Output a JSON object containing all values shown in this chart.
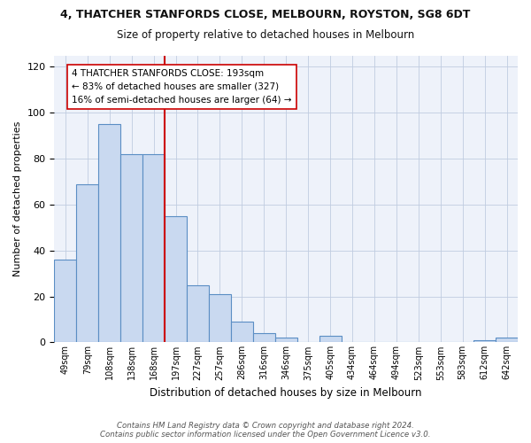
{
  "title": "4, THATCHER STANFORDS CLOSE, MELBOURN, ROYSTON, SG8 6DT",
  "subtitle": "Size of property relative to detached houses in Melbourn",
  "xlabel": "Distribution of detached houses by size in Melbourn",
  "ylabel": "Number of detached properties",
  "bar_values": [
    36,
    69,
    95,
    82,
    82,
    55,
    25,
    21,
    9,
    4,
    2,
    0,
    3,
    0,
    0,
    0,
    0,
    0,
    0,
    1,
    2
  ],
  "xlabels": [
    "49sqm",
    "79sqm",
    "108sqm",
    "138sqm",
    "168sqm",
    "197sqm",
    "227sqm",
    "257sqm",
    "286sqm",
    "316sqm",
    "346sqm",
    "375sqm",
    "405sqm",
    "434sqm",
    "464sqm",
    "494sqm",
    "523sqm",
    "553sqm",
    "583sqm",
    "612sqm",
    "642sqm"
  ],
  "bar_color": "#c9d9f0",
  "bar_edge_color": "#5b8ec4",
  "vline_x_index": 5,
  "vline_color": "#cc0000",
  "ylim": [
    0,
    125
  ],
  "yticks": [
    0,
    20,
    40,
    60,
    80,
    100,
    120
  ],
  "annotation_lines": [
    "4 THATCHER STANFORDS CLOSE: 193sqm",
    "← 83% of detached houses are smaller (327)",
    "16% of semi-detached houses are larger (64) →"
  ],
  "footer_line1": "Contains HM Land Registry data © Crown copyright and database right 2024.",
  "footer_line2": "Contains public sector information licensed under the Open Government Licence v3.0.",
  "axes_bg_color": "#eef2fa",
  "fig_bg_color": "#ffffff"
}
